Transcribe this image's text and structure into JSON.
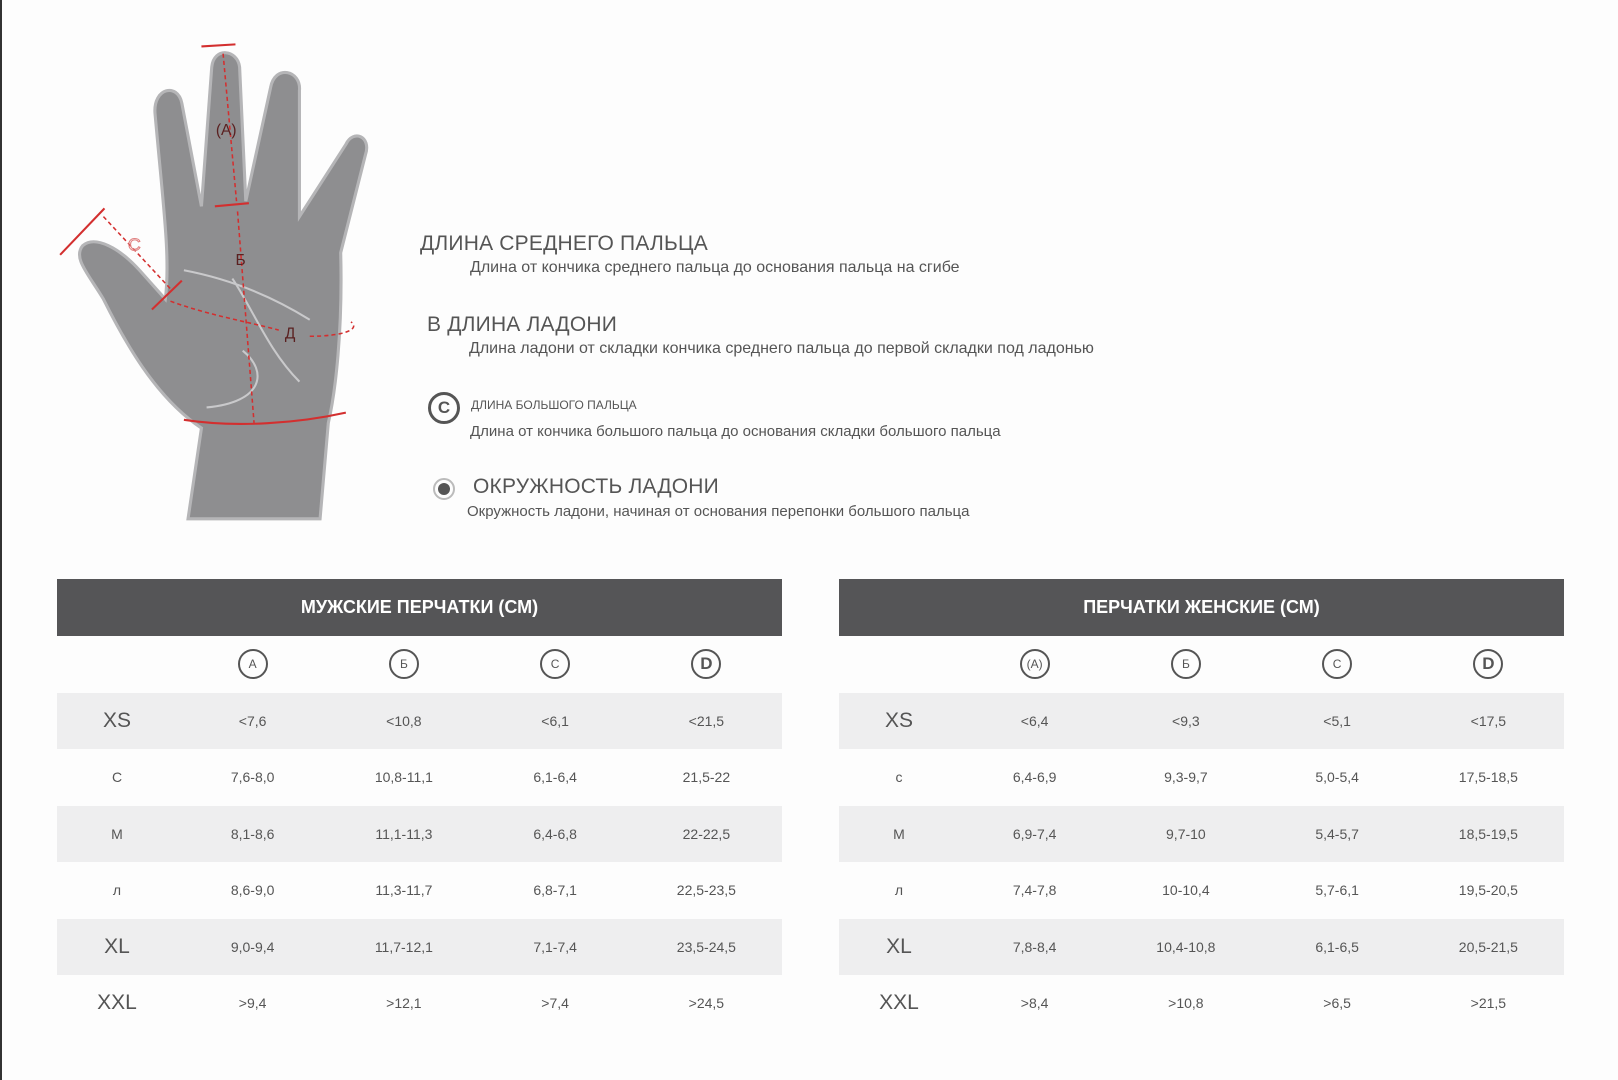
{
  "diagram": {
    "labels": {
      "a": "(A)",
      "b": "Б",
      "c": "C",
      "d": "Д"
    },
    "accent_color": "#d32f2f",
    "hand_color": "#8e8e90"
  },
  "legend": [
    {
      "icon": "",
      "title": "ДЛИНА СРЕДНЕГО ПАЛЬЦА",
      "description": "Длина от кончика среднего пальца до основания пальца на сгибе"
    },
    {
      "icon": "",
      "title": "В ДЛИНА ЛАДОНИ",
      "description": "Длина ладони от складки кончика среднего пальца до первой складки под ладонью"
    },
    {
      "icon": "C",
      "title": "ДЛИНА БОЛЬШОГО ПАЛЬЦА",
      "description": "Длина от кончика большого пальца до основания складки большого пальца"
    },
    {
      "icon": "circle-dot-icon",
      "title": "ОКРУЖНОСТЬ ЛАДОНИ",
      "description": "Окружность ладони, начиная от основания перепонки большого пальца"
    }
  ],
  "tables": [
    {
      "title": "МУЖСКИЕ ПЕРЧАТКИ (СМ)",
      "columns": [
        "A",
        "Б",
        "C",
        "D"
      ],
      "rows": [
        {
          "size": "XS",
          "values": [
            "<7,6",
            "<10,8",
            "<6,1",
            "<21,5"
          ]
        },
        {
          "size": "С",
          "values": [
            "7,6-8,0",
            "10,8-11,1",
            "6,1-6,4",
            "21,5-22"
          ]
        },
        {
          "size": "М",
          "values": [
            "8,1-8,6",
            "11,1-11,3",
            "6,4-6,8",
            "22-22,5"
          ]
        },
        {
          "size": "л",
          "values": [
            "8,6-9,0",
            "11,3-11,7",
            "6,8-7,1",
            "22,5-23,5"
          ]
        },
        {
          "size": "XL",
          "values": [
            "9,0-9,4",
            "11,7-12,1",
            "7,1-7,4",
            "23,5-24,5"
          ]
        },
        {
          "size": "XXL",
          "values": [
            ">9,4",
            ">12,1",
            ">7,4",
            ">24,5"
          ]
        }
      ]
    },
    {
      "title": "ПЕРЧАТКИ ЖЕНСКИЕ (СМ)",
      "columns": [
        "(A)",
        "Б",
        "C",
        "D"
      ],
      "rows": [
        {
          "size": "XS",
          "values": [
            "<6,4",
            "<9,3",
            "<5,1",
            "<17,5"
          ]
        },
        {
          "size": "с",
          "values": [
            "6,4-6,9",
            "9,3-9,7",
            "5,0-5,4",
            "17,5-18,5"
          ]
        },
        {
          "size": "М",
          "values": [
            "6,9-7,4",
            "9,7-10",
            "5,4-5,7",
            "18,5-19,5"
          ]
        },
        {
          "size": "л",
          "values": [
            "7,4-7,8",
            "10-10,4",
            "5,7-6,1",
            "19,5-20,5"
          ]
        },
        {
          "size": "XL",
          "values": [
            "7,8-8,4",
            "10,4-10,8",
            "6,1-6,5",
            "20,5-21,5"
          ]
        },
        {
          "size": "XXL",
          "values": [
            ">8,4",
            ">10,8",
            ">6,5",
            ">21,5"
          ]
        }
      ]
    }
  ]
}
